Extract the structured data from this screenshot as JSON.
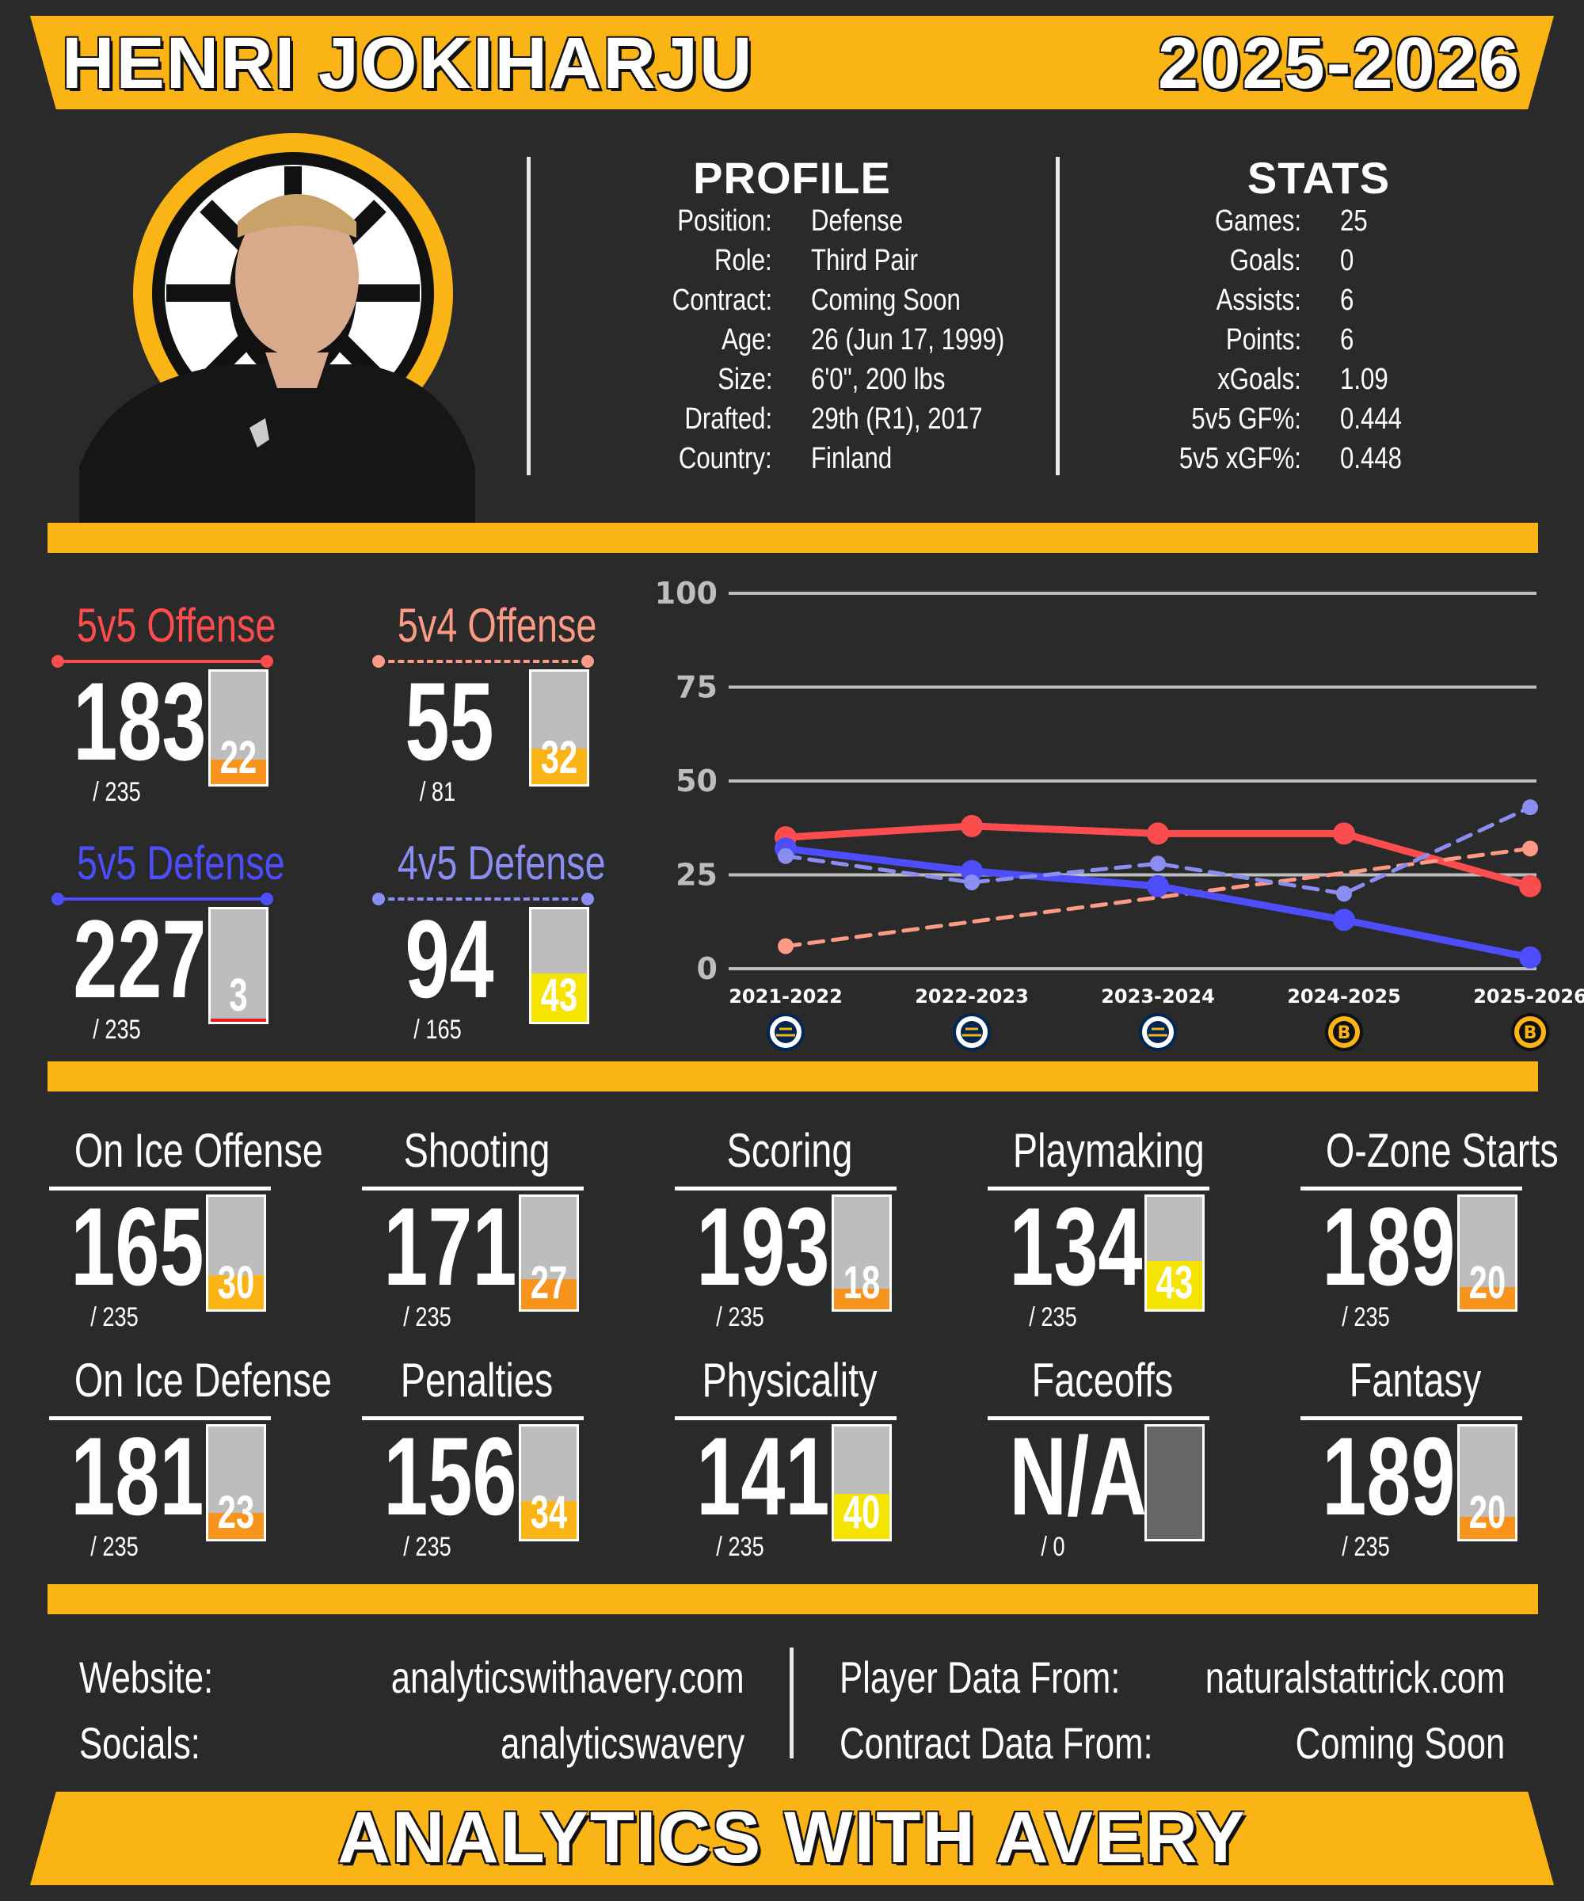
{
  "header": {
    "player_name": "HENRI JOKIHARJU",
    "season": "2025-2026"
  },
  "profile": {
    "title": "PROFILE",
    "rows": [
      {
        "label": "Position:",
        "value": "Defense"
      },
      {
        "label": "Role:",
        "value": "Third Pair"
      },
      {
        "label": "Contract:",
        "value": "Coming Soon"
      },
      {
        "label": "Age:",
        "value": "26 (Jun 17, 1999)"
      },
      {
        "label": "Size:",
        "value": "6'0\", 200 lbs"
      },
      {
        "label": "Drafted:",
        "value": "29th (R1), 2017"
      },
      {
        "label": "Country:",
        "value": "Finland"
      }
    ]
  },
  "stats": {
    "title": "STATS",
    "rows": [
      {
        "label": "Games:",
        "value": "25"
      },
      {
        "label": "Goals:",
        "value": "0"
      },
      {
        "label": "Assists:",
        "value": "6"
      },
      {
        "label": "Points:",
        "value": "6"
      },
      {
        "label": "xGoals:",
        "value": "1.09"
      },
      {
        "label": "5v5 GF%:",
        "value": "0.444"
      },
      {
        "label": "5v5 xGF%:",
        "value": "0.448"
      }
    ]
  },
  "special": [
    {
      "label": "5v5 Offense",
      "rank": "183",
      "total": "/ 235",
      "pct": "22",
      "pct_value": 22,
      "color": "#fb4d4d",
      "dashed": false,
      "fill": "#f7941d"
    },
    {
      "label": "5v4 Offense",
      "rank": "55",
      "total": "/ 81",
      "pct": "32",
      "pct_value": 32,
      "color": "#fc9a85",
      "dashed": true,
      "fill": "#fbb415"
    },
    {
      "label": "5v5 Defense",
      "rank": "227",
      "total": "/ 235",
      "pct": "3",
      "pct_value": 3,
      "color": "#4d4dfb",
      "dashed": false,
      "fill": "#e31b1b"
    },
    {
      "label": "4v5 Defense",
      "rank": "94",
      "total": "/ 165",
      "pct": "43",
      "pct_value": 43,
      "color": "#8a8ef0",
      "dashed": true,
      "fill": "#f5e400"
    }
  ],
  "chart_data": {
    "type": "line",
    "categories": [
      "2021-2022",
      "2022-2023",
      "2023-2024",
      "2024-2025",
      "2025-2026"
    ],
    "team_icons": [
      "sabres-logo-icon",
      "sabres-logo-icon",
      "sabres-logo-icon",
      "bruins-logo-icon",
      "bruins-logo-icon"
    ],
    "ylim": [
      0,
      100
    ],
    "yticks": [
      "0",
      "25",
      "50",
      "75",
      "100"
    ],
    "series": [
      {
        "values": [
          35,
          38,
          36,
          36,
          22
        ],
        "color": "#fb4d4d",
        "dashed": false
      },
      {
        "values": [
          6,
          null,
          null,
          null,
          32
        ],
        "color": "#fc9a85",
        "dashed": true
      },
      {
        "values": [
          32,
          26,
          22,
          13,
          3
        ],
        "color": "#4d4dfb",
        "dashed": false
      },
      {
        "values": [
          30,
          23,
          28,
          20,
          43
        ],
        "color": "#8a8ef0",
        "dashed": true
      }
    ],
    "grid": true
  },
  "categories": [
    {
      "label": "On Ice Offense",
      "rank": "165",
      "total": "/ 235",
      "pct": "30",
      "pct_value": 30,
      "fill": "#fbb415"
    },
    {
      "label": "Shooting",
      "rank": "171",
      "total": "/ 235",
      "pct": "27",
      "pct_value": 27,
      "fill": "#f7941d"
    },
    {
      "label": "Scoring",
      "rank": "193",
      "total": "/ 235",
      "pct": "18",
      "pct_value": 18,
      "fill": "#f7941d"
    },
    {
      "label": "Playmaking",
      "rank": "134",
      "total": "/ 235",
      "pct": "43",
      "pct_value": 43,
      "fill": "#f5e400"
    },
    {
      "label": "O-Zone Starts",
      "rank": "189",
      "total": "/ 235",
      "pct": "20",
      "pct_value": 20,
      "fill": "#f7941d"
    },
    {
      "label": "On Ice Defense",
      "rank": "181",
      "total": "/ 235",
      "pct": "23",
      "pct_value": 23,
      "fill": "#f7941d"
    },
    {
      "label": "Penalties",
      "rank": "156",
      "total": "/ 235",
      "pct": "34",
      "pct_value": 34,
      "fill": "#fbb415"
    },
    {
      "label": "Physicality",
      "rank": "141",
      "total": "/ 235",
      "pct": "40",
      "pct_value": 40,
      "fill": "#f5e400"
    },
    {
      "label": "Faceoffs",
      "rank": "N/A",
      "total": "/ 0",
      "pct": "",
      "pct_value": 0,
      "fill": "#666666"
    },
    {
      "label": "Fantasy",
      "rank": "189",
      "total": "/ 235",
      "pct": "20",
      "pct_value": 20,
      "fill": "#f7941d"
    }
  ],
  "footer": {
    "website_label": "Website:",
    "website": "analyticswithavery.com",
    "socials_label": "Socials:",
    "socials": "analyticswavery",
    "player_data_label": "Player Data From:",
    "player_data": "naturalstattrick.com",
    "contract_data_label": "Contract Data From:",
    "contract_data": "Coming Soon",
    "brand": "ANALYTICS WITH AVERY"
  },
  "colors": {
    "accent": "#fbb415",
    "background": "#2a2a2a"
  }
}
